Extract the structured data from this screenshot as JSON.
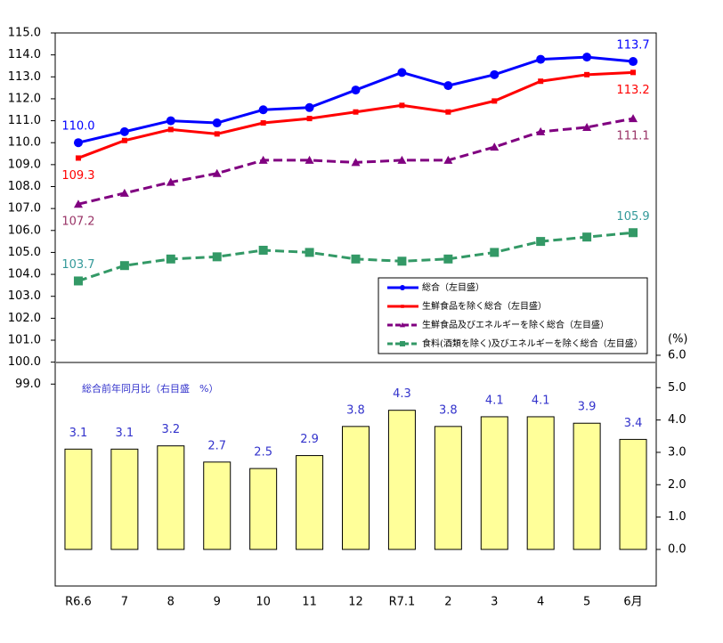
{
  "chart_data": {
    "type": "line-bar",
    "categories": [
      "R6.6",
      "7",
      "8",
      "9",
      "10",
      "11",
      "12",
      "R7.1",
      "2",
      "3",
      "4",
      "5",
      "6月"
    ],
    "ylim": [
      89.8,
      115
    ],
    "yticks": [
      {
        "value": 99,
        "label": "99.0"
      },
      {
        "value": 100,
        "label": "100.0"
      },
      {
        "value": 101,
        "label": "101.0"
      },
      {
        "value": 102,
        "label": "102.0"
      },
      {
        "value": 103,
        "label": "103.0"
      },
      {
        "value": 104,
        "label": "104.0"
      },
      {
        "value": 105,
        "label": "105.0"
      },
      {
        "value": 106,
        "label": "106.0"
      },
      {
        "value": 107,
        "label": "107.0"
      },
      {
        "value": 108,
        "label": "108.0"
      },
      {
        "value": 109,
        "label": "109.0"
      },
      {
        "value": 110,
        "label": "110.0"
      },
      {
        "value": 111,
        "label": "111.0"
      },
      {
        "value": 112,
        "label": "112.0"
      },
      {
        "value": 113,
        "label": "113.0"
      },
      {
        "value": 114,
        "label": "114.0"
      },
      {
        "value": 115,
        "label": "115.0"
      }
    ],
    "y2label": "(%)",
    "y2lim": [
      -1.13,
      15.96
    ],
    "y2ticks": [
      {
        "value": 0,
        "label": "0.0"
      },
      {
        "value": 1,
        "label": "1.0"
      },
      {
        "value": 2,
        "label": "2.0"
      },
      {
        "value": 3,
        "label": "3.0"
      },
      {
        "value": 4,
        "label": "4.0"
      },
      {
        "value": 5,
        "label": "5.0"
      },
      {
        "value": 6,
        "label": "6.0"
      }
    ],
    "series": [
      {
        "name": "総合（左目盛）",
        "color": "#0000ff",
        "marker": "circle",
        "dash": false,
        "values": [
          110.0,
          110.5,
          111.0,
          110.9,
          111.5,
          111.6,
          112.4,
          113.2,
          112.6,
          113.1,
          113.8,
          113.9,
          113.7
        ],
        "value_labels": [
          "110.0",
          null,
          null,
          null,
          null,
          null,
          null,
          null,
          null,
          null,
          null,
          null,
          "113.7"
        ]
      },
      {
        "name": "生鮮食品を除く総合（左目盛）",
        "color": "#ff0000",
        "marker": "square-small",
        "dash": false,
        "values": [
          109.3,
          110.1,
          110.6,
          110.4,
          110.9,
          111.1,
          111.4,
          111.7,
          111.4,
          111.9,
          112.8,
          113.1,
          113.2
        ],
        "value_labels": [
          "109.3",
          null,
          null,
          null,
          null,
          null,
          null,
          null,
          null,
          null,
          null,
          null,
          "113.2"
        ]
      },
      {
        "name": "生鮮食品及びエネルギーを除く総合（左目盛）",
        "color": "#800080",
        "label_color": "#993366",
        "marker": "triangle",
        "dash": true,
        "values": [
          107.2,
          107.7,
          108.2,
          108.6,
          109.2,
          109.2,
          109.1,
          109.2,
          109.2,
          109.8,
          110.5,
          110.7,
          111.1
        ],
        "value_labels": [
          "107.2",
          null,
          null,
          null,
          null,
          null,
          null,
          null,
          null,
          null,
          null,
          null,
          "111.1"
        ]
      },
      {
        "name": "食料(酒類を除く)及びエネルギーを除く総合（左目盛）",
        "color": "#339966",
        "label_color": "#339999",
        "marker": "square",
        "dash": true,
        "values": [
          103.7,
          104.4,
          104.7,
          104.8,
          105.1,
          105.0,
          104.7,
          104.6,
          104.7,
          105.0,
          105.5,
          105.7,
          105.9
        ],
        "value_labels": [
          "103.7",
          null,
          null,
          null,
          null,
          null,
          null,
          null,
          null,
          null,
          null,
          null,
          "105.9"
        ]
      },
      {
        "name": "総合前年同月比（右目盛　%）",
        "type": "bar",
        "axis": "y2",
        "color": "#ffff99",
        "label_color": "#3333cc",
        "values": [
          3.1,
          3.1,
          3.2,
          2.7,
          2.5,
          2.9,
          3.8,
          4.3,
          3.8,
          4.1,
          4.1,
          3.9,
          3.4
        ]
      }
    ]
  }
}
